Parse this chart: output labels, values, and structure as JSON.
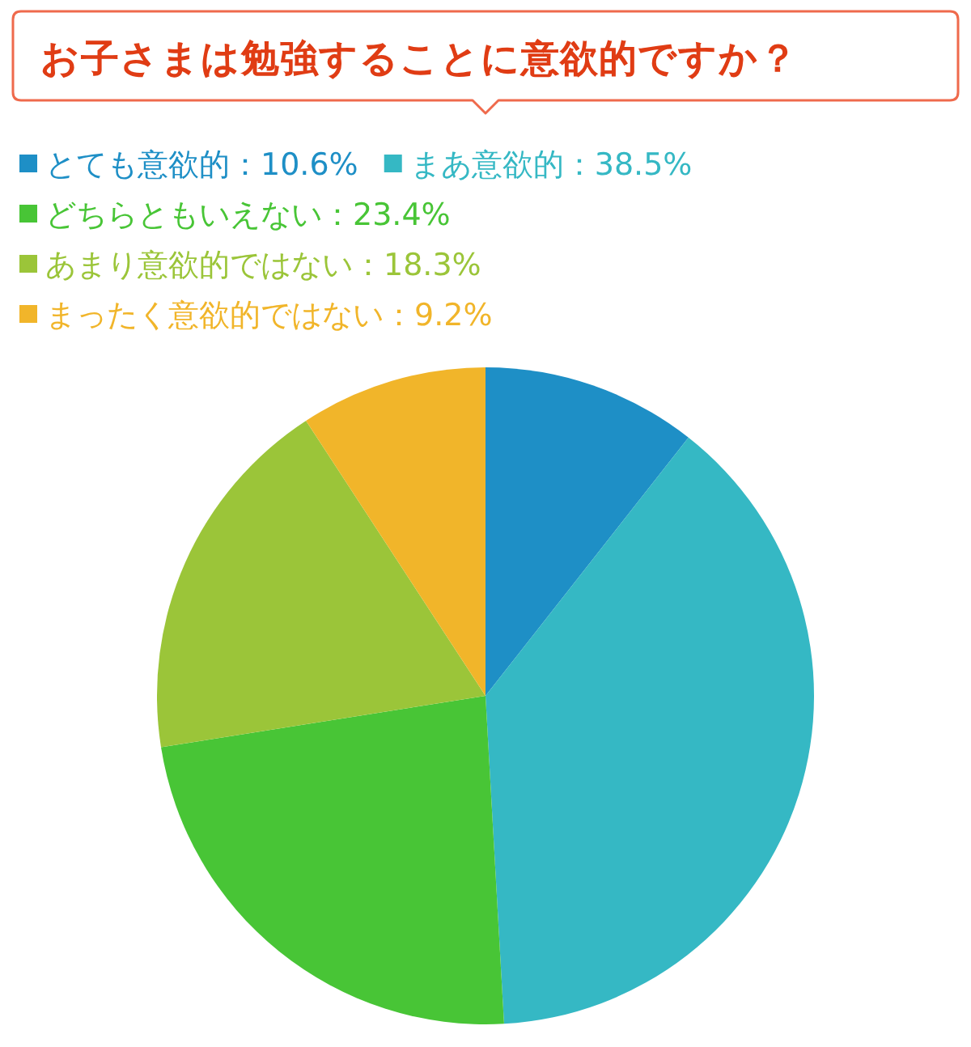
{
  "chart_data": {
    "type": "pie",
    "title": "お子さまは勉強することに意欲的ですか？",
    "categories": [
      "とても意欲的：10.6%",
      "まあ意欲的：38.5%",
      "どちらともいえない：23.4%",
      "あまり意欲的ではない：18.3%",
      "まったく意欲的ではない：9.2%"
    ],
    "values": [
      10.6,
      38.5,
      23.4,
      18.3,
      9.2
    ],
    "colors": [
      "#1e8fc6",
      "#35b8c4",
      "#48c536",
      "#9bc539",
      "#f1b52a"
    ],
    "legend": "top left"
  }
}
